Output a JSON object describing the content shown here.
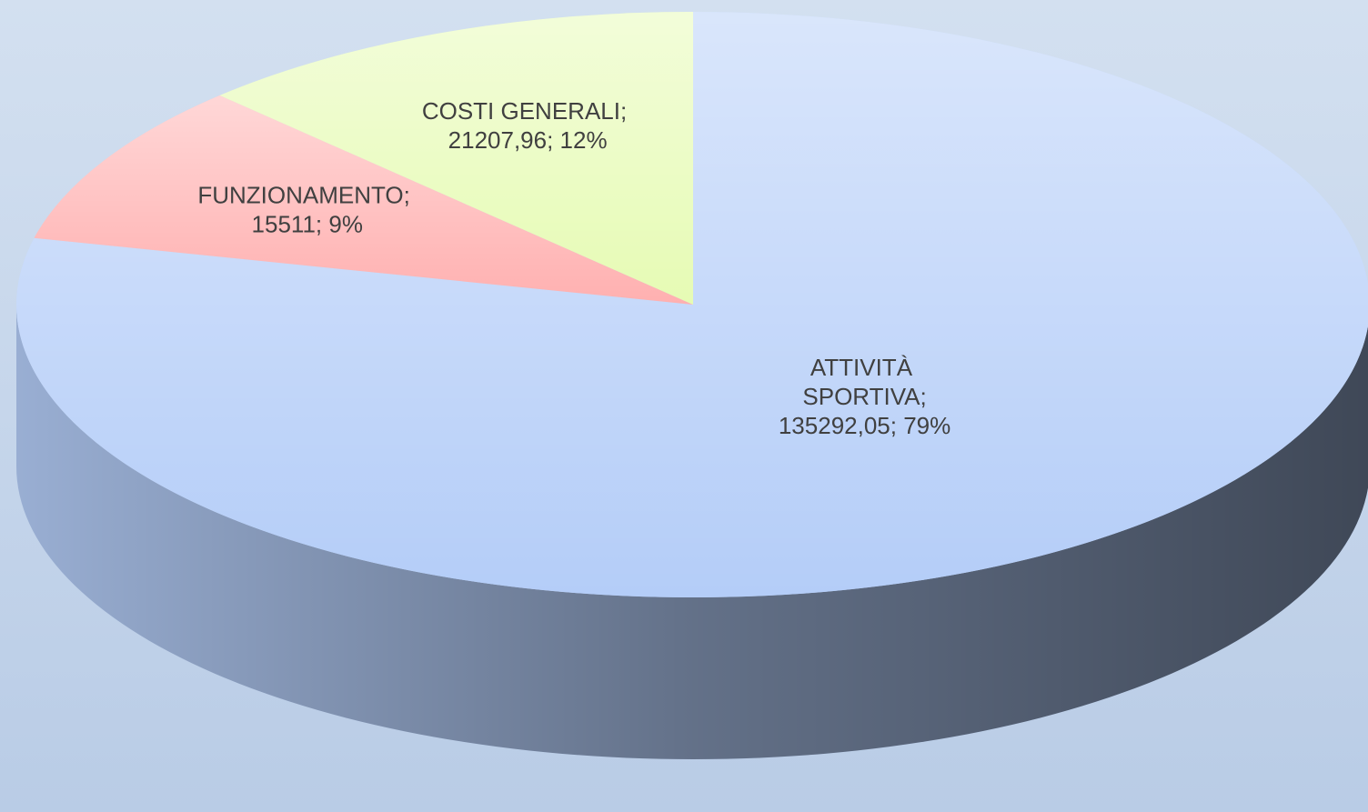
{
  "chart_data": {
    "type": "pie",
    "values": [
      135292.05,
      15511,
      21207.96
    ],
    "value_labels": [
      "ATTIVITÀ SPORTIVA; 135292,05; 79%",
      "FUNZIONAMENTO; 15511; 9%",
      "COSTI GENERALI; 21207,96; 12%"
    ],
    "colors": [
      "#b4cdf8",
      "#ffb0b0",
      "#e6fbb4"
    ]
  }
}
